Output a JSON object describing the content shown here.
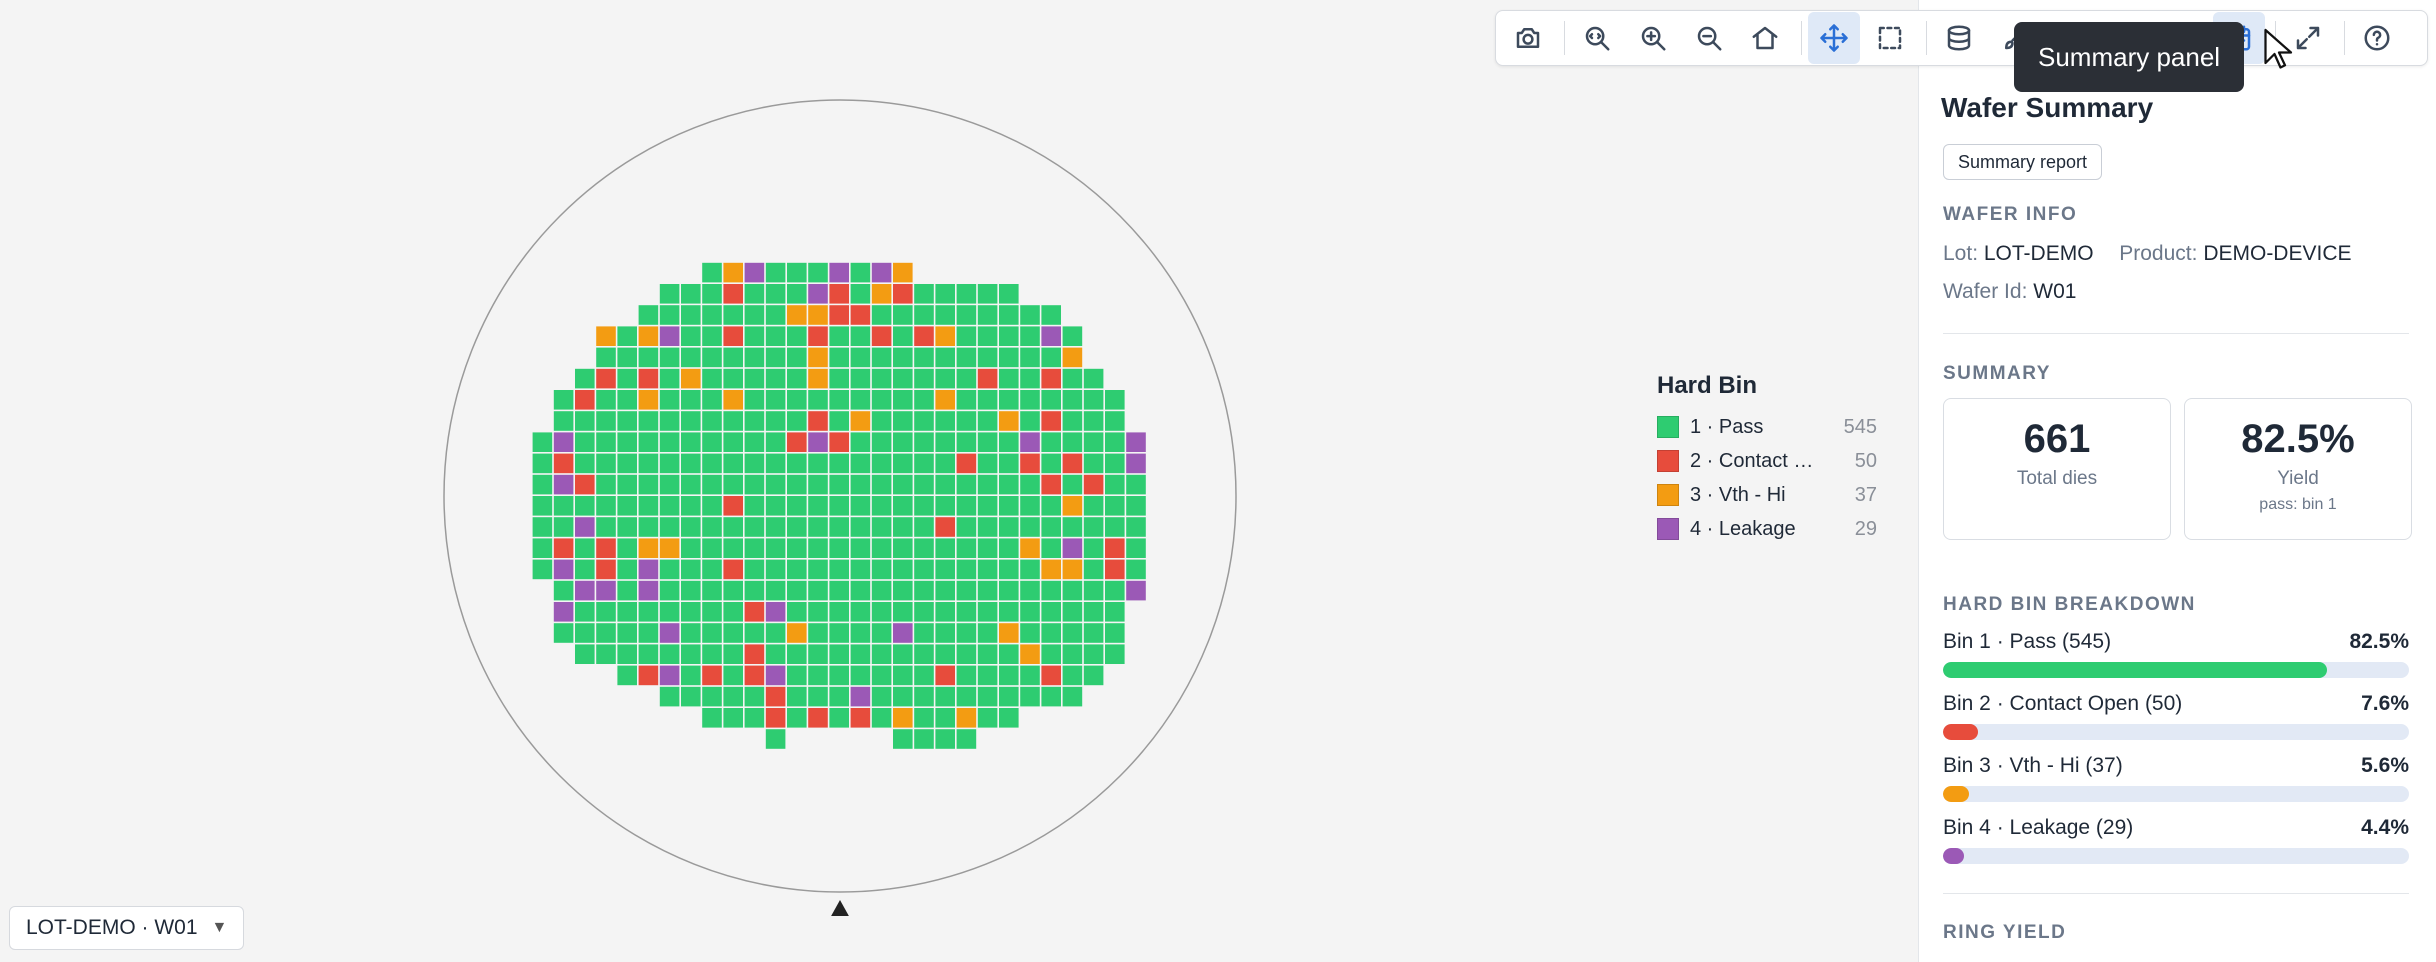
{
  "legend": {
    "title": "Hard Bin",
    "items": [
      {
        "label": "1 · Pass",
        "count": "545",
        "color": "#2ecc71"
      },
      {
        "label": "2 · Contact Open",
        "count": "50",
        "color": "#e74c3c"
      },
      {
        "label": "3 · Vth - Hi",
        "count": "37",
        "color": "#f39c12"
      },
      {
        "label": "4 · Leakage",
        "count": "29",
        "color": "#9b59b6"
      }
    ]
  },
  "wafer_selector": {
    "value": "LOT-DEMO · W01"
  },
  "toolbar": {
    "buttons": [
      {
        "icon": "camera-icon",
        "active": false
      },
      {
        "icon": "zoom-fit-icon",
        "active": false
      },
      {
        "icon": "zoom-in-icon",
        "active": false
      },
      {
        "icon": "zoom-out-icon",
        "active": false
      },
      {
        "icon": "home-icon",
        "active": false
      },
      {
        "icon": "pan-move-icon",
        "active": true
      },
      {
        "icon": "box-select-icon",
        "active": false
      },
      {
        "icon": "database-stack-icon",
        "active": false
      },
      {
        "icon": "brush-icon",
        "active": false
      },
      {
        "icon": "eye-icon",
        "active": false
      },
      {
        "icon": "list-icon",
        "active": false
      },
      {
        "icon": "compass-icon",
        "active": false
      },
      {
        "icon": "summary-panel-icon",
        "active": true
      },
      {
        "icon": "expand-icon",
        "active": false
      },
      {
        "icon": "help-icon",
        "active": false
      }
    ],
    "tooltip": "Summary panel"
  },
  "panel": {
    "title": "Wafer Summary",
    "report_button": "Summary report",
    "wafer_info": {
      "heading": "WAFER INFO",
      "lot_key": "Lot:",
      "lot_value": "LOT-DEMO",
      "product_key": "Product:",
      "product_value": "DEMO-DEVICE",
      "wafer_key": "Wafer Id:",
      "wafer_value": "W01"
    },
    "summary": {
      "heading": "SUMMARY",
      "total_value": "661",
      "total_label": "Total dies",
      "yield_value": "82.5%",
      "yield_label": "Yield",
      "yield_sub": "pass: bin 1"
    },
    "breakdown": {
      "heading": "HARD BIN BREAKDOWN",
      "rows": [
        {
          "label": "Bin 1 · Pass (545)",
          "pct": "82.5%",
          "fraction": 0.825,
          "color": "#2ecc71"
        },
        {
          "label": "Bin 2 · Contact Open (50)",
          "pct": "7.6%",
          "fraction": 0.076,
          "color": "#e74c3c"
        },
        {
          "label": "Bin 3 · Vth - Hi (37)",
          "pct": "5.6%",
          "fraction": 0.056,
          "color": "#f39c12"
        },
        {
          "label": "Bin 4 · Leakage (29)",
          "pct": "4.4%",
          "fraction": 0.044,
          "color": "#9b59b6"
        }
      ]
    },
    "ring_yield": {
      "heading": "RING YIELD"
    }
  },
  "wafer_map": {
    "bin_colors": {
      "1": "#2ecc71",
      "2": "#e74c3c",
      "3": "#f39c12",
      "4": "#9b59b6"
    },
    "rows": [
      "00000000000000000000000000000000000",
      "00000000000134111414300000000000000",
      "00000000011121114213211111000000000",
      "00000000111111133221111111110000000",
      "00000031341121112112123111141000000",
      "00000011111111113111111111113000000",
      "00000121213111113111111121121100000",
      "00001211311131111111113111111110000",
      "00001111111111112131111113121110000",
      "00014111111111124211111111411114000",
      "00012111111111111111111211212114000",
      "00014211111111111111111111121211000",
      "00011111111121111111111111113111000",
      "00011411111111111111112111111111000",
      "00012121331111111111111111314121000",
      "00014121411121111111111111133121000",
      "00001441411111111111111111111114000",
      "00004111111112411111111111111110000",
      "00001111141111131111411113111110000",
      "00000111111112111111111111311110000",
      "00000001241212411111112111121100000",
      "00000000011111211141111111111000000",
      "00000000000111212121311311000000000",
      "00000000000000100000111100000000000"
    ]
  }
}
